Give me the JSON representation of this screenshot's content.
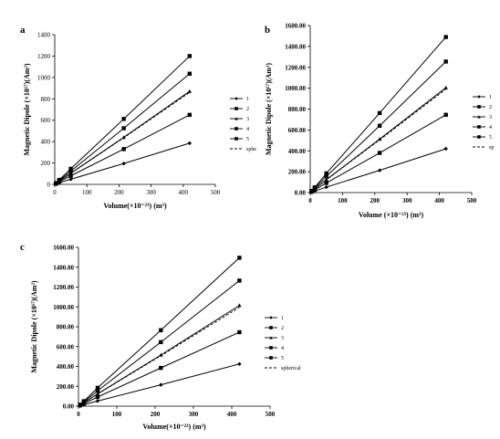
{
  "chart_data": [
    {
      "panel": "a",
      "type": "line",
      "ylabel": "Magnetic Dipole (×10¹⁷)(Am²)",
      "xlabel": "Volume(×10⁻²³) (m³)",
      "xlim": [
        0,
        500
      ],
      "ylim": [
        0,
        1400
      ],
      "xticks": [
        "0",
        "100",
        "200",
        "300",
        "400",
        "500"
      ],
      "yticks": [
        "0",
        "200",
        "400",
        "600",
        "800",
        "1000",
        "1200",
        "1400"
      ],
      "x": [
        0,
        4,
        14,
        50,
        215,
        420
      ],
      "series": [
        {
          "name": "1",
          "marker": "diamond",
          "values": [
            0,
            4,
            15,
            48,
            195,
            385
          ]
        },
        {
          "name": "2",
          "marker": "square",
          "values": [
            0,
            6,
            24,
            80,
            330,
            650
          ]
        },
        {
          "name": "3",
          "marker": "triangle",
          "values": [
            0,
            8,
            30,
            104,
            440,
            870
          ]
        },
        {
          "name": "4",
          "marker": "square",
          "values": [
            0,
            10,
            36,
            124,
            525,
            1035
          ]
        },
        {
          "name": "5",
          "marker": "square",
          "values": [
            0,
            12,
            42,
            146,
            612,
            1200
          ]
        },
        {
          "name": "sphe",
          "dashed": true,
          "values": [
            0,
            8,
            30,
            103,
            436,
            860
          ]
        }
      ],
      "legend": "right"
    },
    {
      "panel": "b",
      "type": "line",
      "ylabel": "Magnetic Dipole (×10¹⁷)(Am²)",
      "xlabel": "Volume (×10⁻²³) (m³)",
      "xlim": [
        0,
        500
      ],
      "ylim": [
        0,
        1600
      ],
      "xticks": [
        "0",
        "100",
        "200",
        "300",
        "400",
        "500"
      ],
      "yticks": [
        "0.00",
        "200.00",
        "400.00",
        "600.00",
        "800.00",
        "1000.00",
        "1200.00",
        "1400.00",
        "1600.00"
      ],
      "x": [
        0,
        4,
        14,
        50,
        215,
        420
      ],
      "series": [
        {
          "name": "1",
          "marker": "diamond",
          "values": [
            0,
            4,
            15,
            52,
            213,
            420
          ]
        },
        {
          "name": "2",
          "marker": "square",
          "values": [
            0,
            7,
            26,
            92,
            380,
            745
          ]
        },
        {
          "name": "3",
          "marker": "triangle",
          "values": [
            0,
            10,
            34,
            124,
            512,
            1005
          ]
        },
        {
          "name": "4",
          "marker": "square",
          "values": [
            0,
            12,
            42,
            155,
            640,
            1255
          ]
        },
        {
          "name": "5",
          "marker": "square",
          "values": [
            0,
            15,
            50,
            184,
            762,
            1490
          ]
        },
        {
          "name": "sp",
          "dashed": true,
          "values": [
            0,
            10,
            34,
            122,
            505,
            990
          ]
        }
      ],
      "legend": "right"
    },
    {
      "panel": "c",
      "type": "line",
      "ylabel": "Magnetic Dipole (×10¹⁷)(Am²)",
      "xlabel": "Volume(×10⁻²³) (m³)",
      "xlim": [
        0,
        500
      ],
      "ylim": [
        0,
        1600
      ],
      "xticks": [
        "0",
        "100",
        "200",
        "300",
        "400",
        "500"
      ],
      "yticks": [
        "0.00",
        "200.00",
        "400.00",
        "600.00",
        "800.00",
        "1000.00",
        "1200.00",
        "1400.00",
        "1600.00"
      ],
      "x": [
        0,
        4,
        14,
        50,
        215,
        420
      ],
      "series": [
        {
          "name": "1",
          "marker": "diamond",
          "values": [
            0,
            4,
            15,
            52,
            215,
            425
          ]
        },
        {
          "name": "2",
          "marker": "square",
          "values": [
            0,
            7,
            26,
            92,
            385,
            745
          ]
        },
        {
          "name": "3",
          "marker": "triangle",
          "values": [
            0,
            10,
            34,
            124,
            515,
            1015
          ]
        },
        {
          "name": "4",
          "marker": "square",
          "values": [
            0,
            12,
            42,
            155,
            645,
            1265
          ]
        },
        {
          "name": "5",
          "marker": "square",
          "values": [
            0,
            15,
            50,
            185,
            765,
            1495
          ]
        },
        {
          "name": "spherical",
          "dashed": true,
          "values": [
            0,
            10,
            34,
            122,
            508,
            995
          ]
        }
      ],
      "legend": "right"
    }
  ]
}
